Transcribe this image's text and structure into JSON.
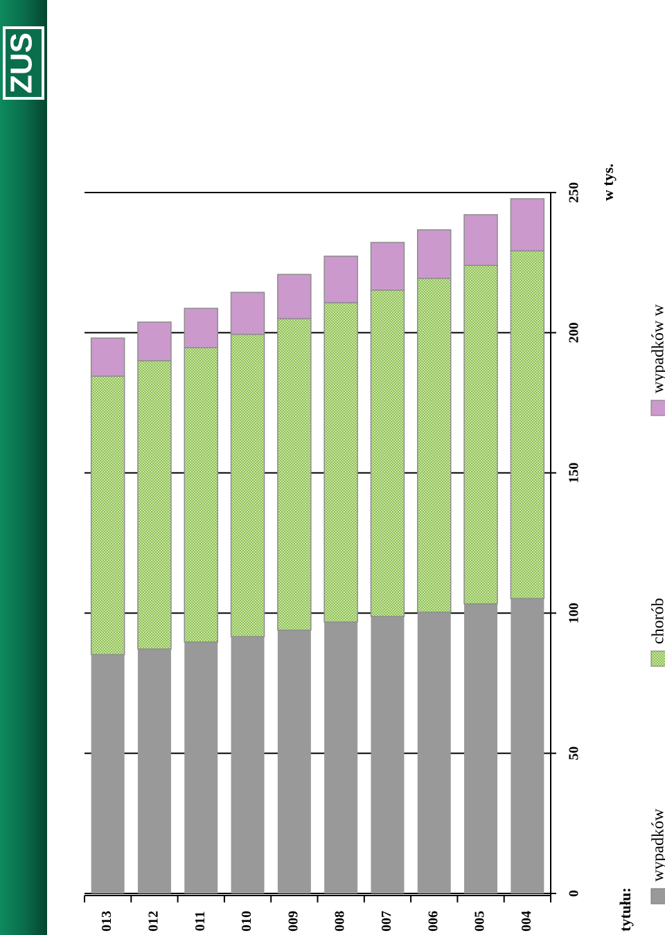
{
  "logo": "ZUS",
  "chart_data": {
    "type": "stacked-bar",
    "legend_title": "tytułu:",
    "unit": "w tys.",
    "categories": [
      "013",
      "012",
      "011",
      "010",
      "009",
      "008",
      "007",
      "006",
      "005",
      "004"
    ],
    "series": [
      {
        "name": "wypadków",
        "color": "#999999",
        "values": [
          85.2,
          87.2,
          89.7,
          91.6,
          93.9,
          96.8,
          98.8,
          100.3,
          103.3,
          105.2
        ]
      },
      {
        "name": "chorób",
        "color": "#b8d98c",
        "values": [
          99.3,
          102.8,
          105.0,
          107.8,
          111.1,
          113.9,
          116.4,
          119.1,
          120.7,
          124.0
        ]
      },
      {
        "name": "wypadków w",
        "color": "#cc99cc",
        "values": [
          13.6,
          13.8,
          14.0,
          15.0,
          15.8,
          16.6,
          17.0,
          17.3,
          18.1,
          18.6
        ]
      }
    ],
    "ylim": [
      0,
      250
    ],
    "yticks": [
      0,
      50,
      100,
      150,
      200,
      250
    ],
    "grid": true
  }
}
